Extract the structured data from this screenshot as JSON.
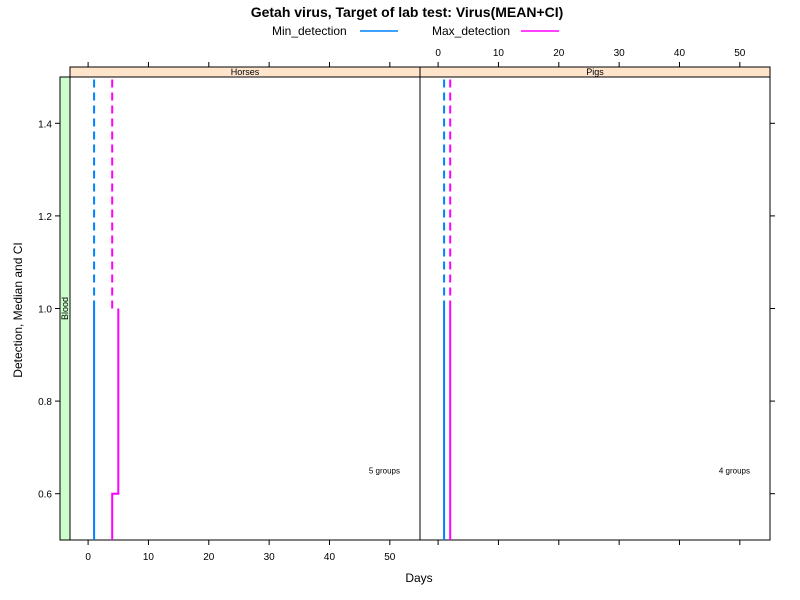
{
  "chart_data": {
    "type": "line",
    "title": "Getah virus, Target of lab test: Virus(MEAN+CI)",
    "xlabel": "Days",
    "ylabel": "Detection, Median and CI",
    "row_strip": "Blood",
    "xlim": [
      -3,
      55
    ],
    "ylim": [
      0.5,
      1.5
    ],
    "x_ticks": [
      0,
      10,
      20,
      30,
      40,
      50
    ],
    "y_ticks": [
      0.6,
      0.8,
      1.0,
      1.2,
      1.4
    ],
    "y_tick_labels": [
      "0.6",
      "0.8",
      "1.0",
      "1.2",
      "1.4"
    ],
    "legend": {
      "placement": "top",
      "items": [
        {
          "name": "Min_detection",
          "color": "#0080ff"
        },
        {
          "name": "Max_detection",
          "color": "#ff00ff"
        }
      ]
    },
    "panels": [
      {
        "strip": "Horses",
        "note": "5 groups",
        "series": [
          {
            "name": "Min_detection",
            "color": "#0080ff",
            "median": [
              [
                1,
                0.5
              ],
              [
                1,
                1.0
              ]
            ],
            "ci_upper": [
              [
                1,
                1.0
              ],
              [
                1,
                1.5
              ]
            ]
          },
          {
            "name": "Max_detection",
            "color": "#ff00ff",
            "median": [
              [
                4,
                0.5
              ],
              [
                4,
                0.6
              ],
              [
                5,
                0.6
              ],
              [
                5,
                1.0
              ]
            ],
            "ci_upper": [
              [
                4,
                1.0
              ],
              [
                4,
                1.5
              ]
            ]
          }
        ]
      },
      {
        "strip": "Pigs",
        "note": "4 groups",
        "series": [
          {
            "name": "Min_detection",
            "color": "#0080ff",
            "median": [
              [
                1,
                0.5
              ],
              [
                1,
                1.0
              ]
            ],
            "ci_upper": [
              [
                1,
                1.0
              ],
              [
                1,
                1.5
              ]
            ]
          },
          {
            "name": "Max_detection",
            "color": "#ff00ff",
            "median": [
              [
                2,
                0.5
              ],
              [
                2,
                1.0
              ]
            ],
            "ci_upper": [
              [
                2,
                1.0
              ],
              [
                2,
                1.5
              ]
            ]
          }
        ]
      }
    ]
  }
}
